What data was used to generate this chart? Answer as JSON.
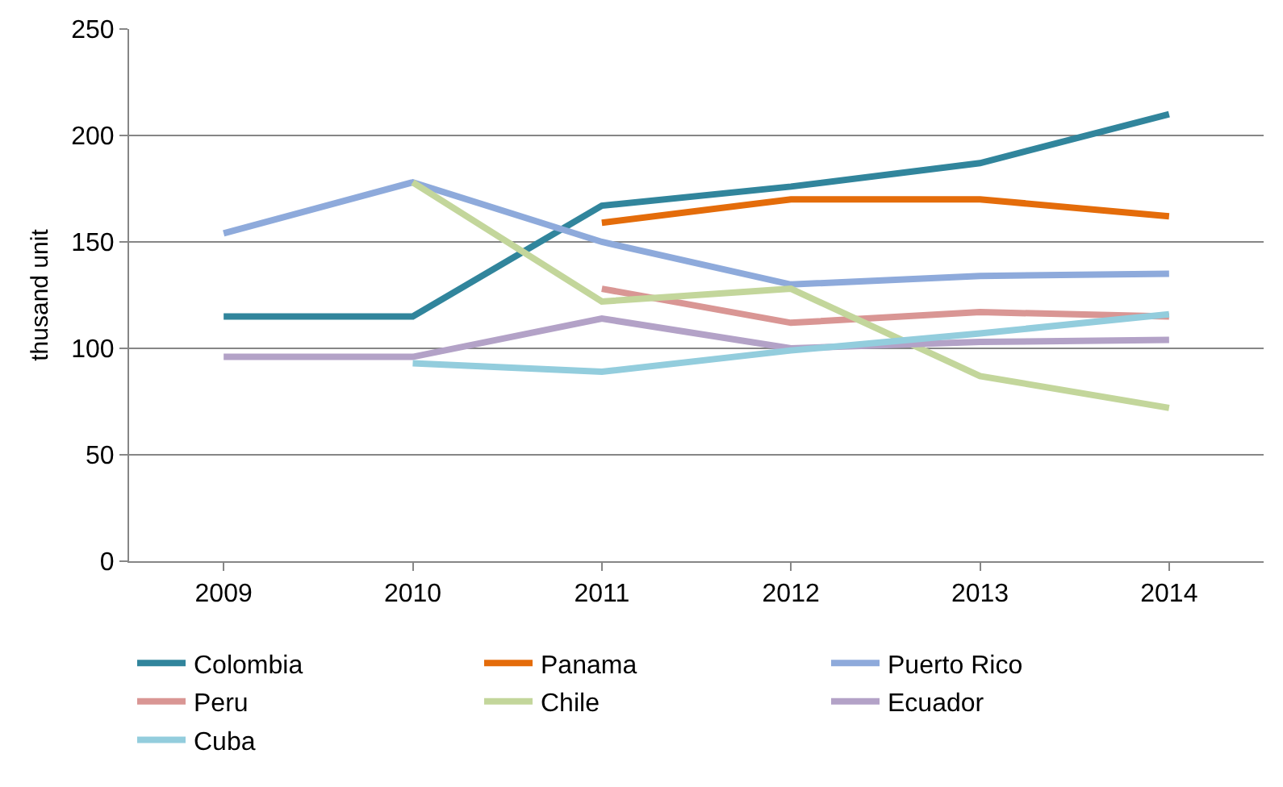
{
  "chart_data": {
    "type": "line",
    "ylabel": "thusand unit",
    "categories": [
      "2009",
      "2010",
      "2011",
      "2012",
      "2013",
      "2014"
    ],
    "ylim": [
      0,
      250
    ],
    "yticks": [
      0,
      50,
      100,
      150,
      200,
      250
    ],
    "grid": "y",
    "legend": "bottom",
    "marker": "none",
    "line_style": "solid",
    "series": [
      {
        "name": "Colombia",
        "color": "#31859c",
        "values": [
          115,
          115,
          167,
          176,
          187,
          210
        ]
      },
      {
        "name": "Panama",
        "color": "#e46c0a",
        "values": [
          null,
          null,
          159,
          170,
          170,
          162
        ]
      },
      {
        "name": "Puerto Rico",
        "color": "#8eaadb",
        "values": [
          154,
          178,
          150,
          130,
          134,
          135
        ]
      },
      {
        "name": "Peru",
        "color": "#d99694",
        "values": [
          null,
          null,
          128,
          112,
          117,
          115
        ]
      },
      {
        "name": "Chile",
        "color": "#c3d69b",
        "values": [
          null,
          178,
          122,
          128,
          87,
          72
        ]
      },
      {
        "name": "Ecuador",
        "color": "#b3a2c7",
        "values": [
          96,
          96,
          114,
          100,
          103,
          104
        ]
      },
      {
        "name": "Cuba",
        "color": "#93cddd",
        "values": [
          null,
          93,
          89,
          99,
          107,
          116
        ]
      }
    ]
  }
}
